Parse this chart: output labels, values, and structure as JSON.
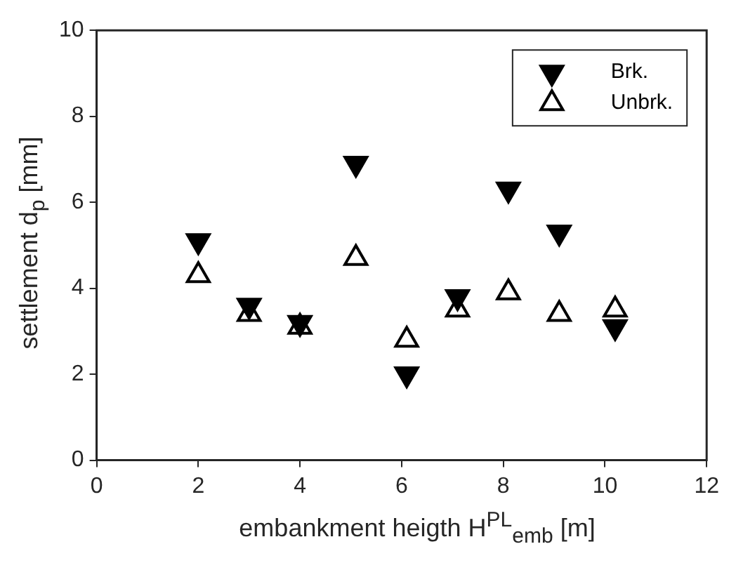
{
  "chart_data": {
    "type": "scatter",
    "xlabel": "embankment heigth H$^{PL}$$_{emb}$ [m]",
    "ylabel": "settlement d$_{p}$ [mm]",
    "xlim": [
      0,
      12
    ],
    "xticks": [
      0,
      2,
      4,
      6,
      8,
      10,
      12
    ],
    "ylim": [
      0,
      10
    ],
    "yticks": [
      0,
      2,
      4,
      6,
      8,
      10
    ],
    "grid": false,
    "legend": "top right",
    "series": [
      {
        "name": "Brk.",
        "color": "#000000",
        "marker": "triangle-down",
        "x": [
          2,
          3,
          4,
          5.1,
          6.1,
          7.1,
          8.1,
          9.1,
          10.2
        ],
        "values": [
          5.1,
          3.6,
          3.2,
          6.9,
          2.0,
          3.8,
          6.3,
          5.3,
          3.1
        ]
      },
      {
        "name": "Unbrk.",
        "color": "#000000",
        "marker": "triangle",
        "x": [
          2,
          3,
          4,
          5.1,
          6.1,
          7.1,
          8.1,
          9.1,
          10.2
        ],
        "values": [
          4.3,
          3.4,
          3.1,
          4.7,
          2.8,
          3.5,
          3.9,
          3.4,
          3.5
        ]
      }
    ]
  }
}
